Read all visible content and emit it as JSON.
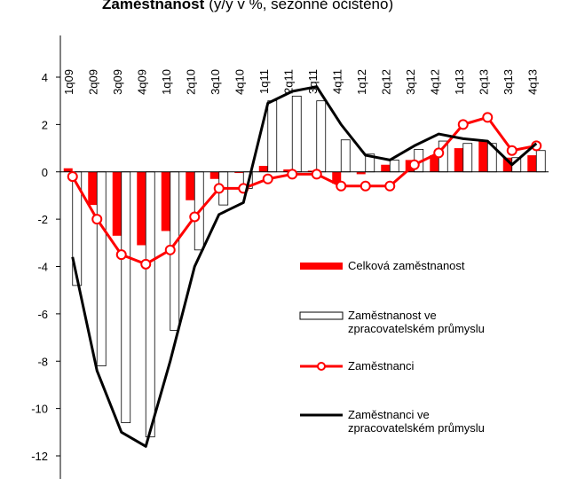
{
  "chart_data": {
    "type": "bar_line",
    "title": "Zaměstnanost",
    "subtitle": "(y/y v %, sezónně očištěno)",
    "categories": [
      "1q09",
      "2q09",
      "3q09",
      "4q09",
      "1q10",
      "2q10",
      "3q10",
      "4q10",
      "1q11",
      "2q11",
      "3q11",
      "4q11",
      "1q12",
      "2q12",
      "3q12",
      "4q12",
      "1q13",
      "2q13",
      "3q13",
      "4q13"
    ],
    "ylim": [
      -12,
      4
    ],
    "yticks": [
      -12,
      -10,
      -8,
      -6,
      -4,
      -2,
      0,
      2,
      4
    ],
    "series": [
      {
        "name": "Celková zaměstnanost",
        "kind": "bar",
        "color": "#ff0000",
        "values": [
          0.15,
          -1.4,
          -2.7,
          -3.1,
          -2.5,
          -1.2,
          -0.3,
          -0.05,
          0.25,
          0.1,
          0.05,
          -0.5,
          -0.1,
          0.3,
          0.5,
          0.7,
          1.0,
          1.3,
          0.6,
          0.7
        ]
      },
      {
        "name": "Zaměstnanost ve\nzpracovatelském průmyslu",
        "kind": "bar",
        "color": "#ffffff",
        "values": [
          -4.8,
          -8.2,
          -10.6,
          -11.2,
          -6.7,
          -3.3,
          -1.4,
          -0.7,
          3.0,
          3.2,
          3.0,
          1.35,
          0.75,
          0.5,
          0.95,
          1.3,
          1.2,
          1.2,
          0.6,
          0.9
        ]
      },
      {
        "name": "Zaměstnanci",
        "kind": "line-marker",
        "color": "#ff0000",
        "values": [
          -0.2,
          -2.0,
          -3.5,
          -3.9,
          -3.3,
          -1.9,
          -0.7,
          -0.7,
          -0.3,
          -0.1,
          -0.1,
          -0.6,
          -0.6,
          -0.6,
          0.3,
          0.8,
          2.0,
          2.3,
          0.9,
          1.1
        ]
      },
      {
        "name": "Zaměstnanci ve\nzpracovatelském průmyslu",
        "kind": "line",
        "color": "#000000",
        "values": [
          -3.6,
          -8.4,
          -11.0,
          -11.6,
          -8.0,
          -4.0,
          -1.8,
          -1.3,
          2.9,
          3.4,
          3.6,
          2.0,
          0.7,
          0.5,
          1.1,
          1.6,
          1.4,
          1.3,
          0.3,
          1.2
        ]
      }
    ]
  }
}
